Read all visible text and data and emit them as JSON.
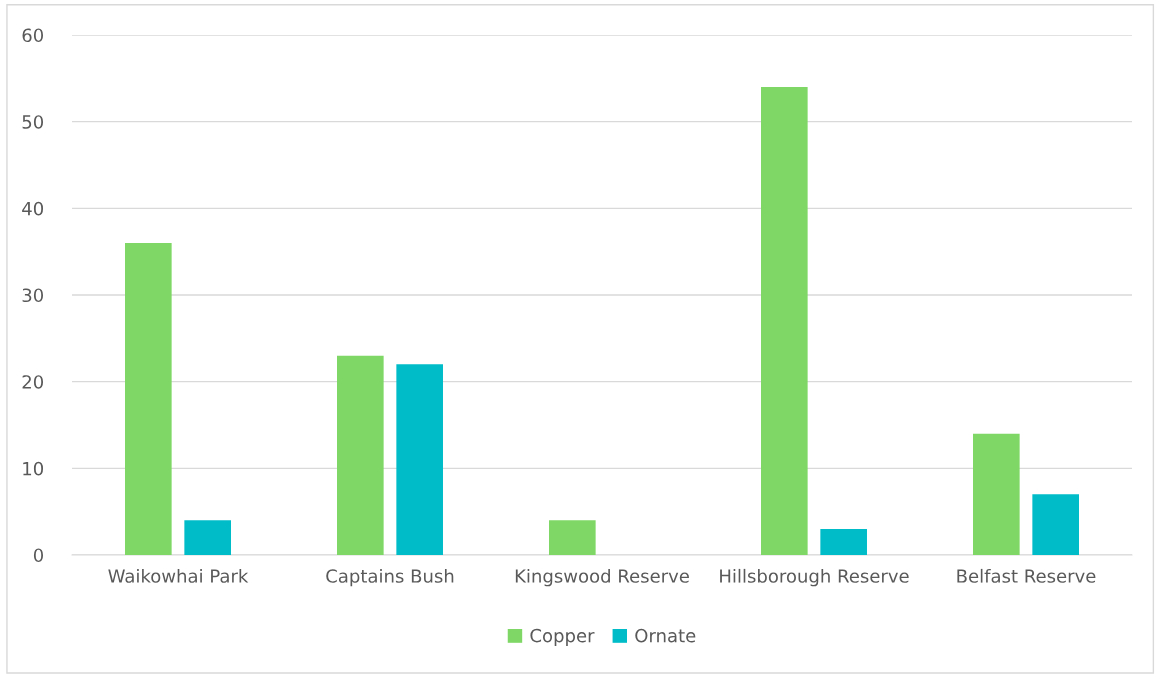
{
  "chart_data": {
    "type": "bar",
    "categories": [
      "Waikowhai Park",
      "Captains Bush",
      "Kingswood Reserve",
      "Hillsborough Reserve",
      "Belfast Reserve"
    ],
    "series": [
      {
        "name": "Copper",
        "color": "#7fd866",
        "values": [
          36,
          23,
          4,
          54,
          14
        ]
      },
      {
        "name": "Ornate",
        "color": "#00bcc9",
        "values": [
          4,
          22,
          0,
          3,
          7
        ]
      }
    ],
    "ylim": [
      0,
      60
    ],
    "yticks": [
      0,
      10,
      20,
      30,
      40,
      50,
      60
    ],
    "grid": "y",
    "legend": "bottom"
  }
}
